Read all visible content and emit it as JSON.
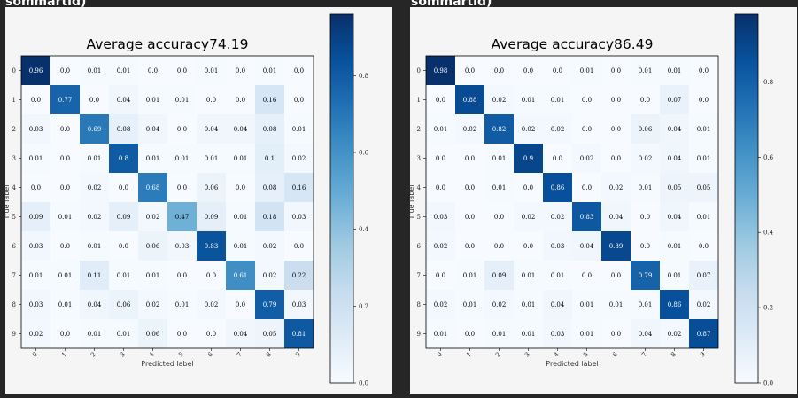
{
  "headers": [
    {
      "text": "sommartid)"
    },
    {
      "text": "sommartid)"
    }
  ],
  "colors": {
    "page_background": "#262626",
    "panel_background": "#f5f5f5",
    "cmap_low": "#f7fbff",
    "cmap_high": "#08306b"
  },
  "chart_data": [
    {
      "type": "heatmap",
      "title": "Average accuracy74.19",
      "xlabel": "Predicted label",
      "ylabel": "True label",
      "x_tick_labels": [
        "0",
        "1",
        "2",
        "3",
        "4",
        "5",
        "6",
        "7",
        "8",
        "9"
      ],
      "y_tick_labels": [
        "0",
        "1",
        "2",
        "3",
        "4",
        "5",
        "6",
        "7",
        "8",
        "9"
      ],
      "colorbar_ticks": [
        "0.0",
        "0.2",
        "0.4",
        "0.6",
        "0.8"
      ],
      "colorbar_range": [
        0.0,
        0.96
      ],
      "values": [
        [
          "0.96",
          "0.0",
          "0.01",
          "0.01",
          "0.0",
          "0.0",
          "0.01",
          "0.0",
          "0.01",
          "0.0"
        ],
        [
          "0.0",
          "0.77",
          "0.0",
          "0.04",
          "0.01",
          "0.01",
          "0.0",
          "0.0",
          "0.16",
          "0.0"
        ],
        [
          "0.03",
          "0.0",
          "0.69",
          "0.08",
          "0.04",
          "0.0",
          "0.04",
          "0.04",
          "0.08",
          "0.01"
        ],
        [
          "0.01",
          "0.0",
          "0.01",
          "0.8",
          "0.01",
          "0.01",
          "0.01",
          "0.01",
          "0.1",
          "0.02"
        ],
        [
          "0.0",
          "0.0",
          "0.02",
          "0.0",
          "0.68",
          "0.0",
          "0.06",
          "0.0",
          "0.08",
          "0.16"
        ],
        [
          "0.09",
          "0.01",
          "0.02",
          "0.09",
          "0.02",
          "0.47",
          "0.09",
          "0.01",
          "0.18",
          "0.03"
        ],
        [
          "0.03",
          "0.0",
          "0.01",
          "0.0",
          "0.06",
          "0.03",
          "0.83",
          "0.01",
          "0.02",
          "0.0"
        ],
        [
          "0.01",
          "0.01",
          "0.11",
          "0.01",
          "0.01",
          "0.0",
          "0.0",
          "0.61",
          "0.02",
          "0.22"
        ],
        [
          "0.03",
          "0.01",
          "0.04",
          "0.06",
          "0.02",
          "0.01",
          "0.02",
          "0.0",
          "0.79",
          "0.03"
        ],
        [
          "0.02",
          "0.0",
          "0.01",
          "0.01",
          "0.06",
          "0.0",
          "0.0",
          "0.04",
          "0.05",
          "0.81"
        ]
      ]
    },
    {
      "type": "heatmap",
      "title": "Average accuracy86.49",
      "xlabel": "Predicted label",
      "ylabel": "True label",
      "x_tick_labels": [
        "0",
        "1",
        "2",
        "3",
        "4",
        "5",
        "6",
        "7",
        "8",
        "9"
      ],
      "y_tick_labels": [
        "0",
        "1",
        "2",
        "3",
        "4",
        "5",
        "6",
        "7",
        "8",
        "9"
      ],
      "colorbar_ticks": [
        "0.0",
        "0.2",
        "0.4",
        "0.6",
        "0.8"
      ],
      "colorbar_range": [
        0.0,
        0.98
      ],
      "values": [
        [
          "0.98",
          "0.0",
          "0.0",
          "0.0",
          "0.0",
          "0.01",
          "0.0",
          "0.01",
          "0.01",
          "0.0"
        ],
        [
          "0.0",
          "0.88",
          "0.02",
          "0.01",
          "0.01",
          "0.0",
          "0.0",
          "0.0",
          "0.07",
          "0.0"
        ],
        [
          "0.01",
          "0.02",
          "0.82",
          "0.02",
          "0.02",
          "0.0",
          "0.0",
          "0.06",
          "0.04",
          "0.01"
        ],
        [
          "0.0",
          "0.0",
          "0.01",
          "0.9",
          "0.0",
          "0.02",
          "0.0",
          "0.02",
          "0.04",
          "0.01"
        ],
        [
          "0.0",
          "0.0",
          "0.01",
          "0.0",
          "0.86",
          "0.0",
          "0.02",
          "0.01",
          "0.05",
          "0.05"
        ],
        [
          "0.03",
          "0.0",
          "0.0",
          "0.02",
          "0.02",
          "0.83",
          "0.04",
          "0.0",
          "0.04",
          "0.01"
        ],
        [
          "0.02",
          "0.0",
          "0.0",
          "0.0",
          "0.03",
          "0.04",
          "0.89",
          "0.0",
          "0.01",
          "0.0"
        ],
        [
          "0.0",
          "0.01",
          "0.09",
          "0.01",
          "0.01",
          "0.0",
          "0.0",
          "0.79",
          "0.01",
          "0.07"
        ],
        [
          "0.02",
          "0.01",
          "0.02",
          "0.01",
          "0.04",
          "0.01",
          "0.01",
          "0.01",
          "0.86",
          "0.02"
        ],
        [
          "0.01",
          "0.0",
          "0.01",
          "0.01",
          "0.03",
          "0.01",
          "0.0",
          "0.04",
          "0.02",
          "0.87"
        ]
      ]
    }
  ]
}
